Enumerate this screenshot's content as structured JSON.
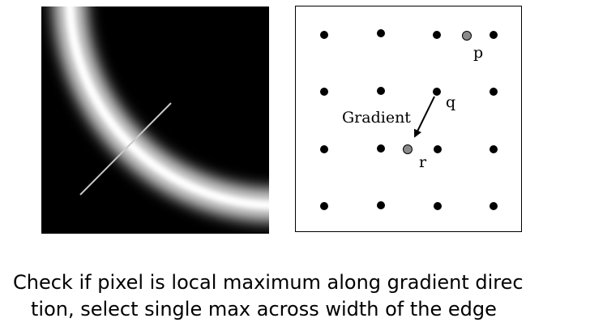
{
  "figure": {
    "grid": {
      "point_labels": {
        "p": "p",
        "q": "q",
        "r": "r"
      },
      "arrow_label": "Gradient",
      "colors": {
        "dot": "#000000",
        "interp_point": "#8a8a8a",
        "edge": "#ffffff",
        "background": "#000000"
      }
    }
  },
  "caption": {
    "line1": "Check if pixel is local maximum along gradient direc",
    "line2": "tion, select single max across width of the edge"
  }
}
